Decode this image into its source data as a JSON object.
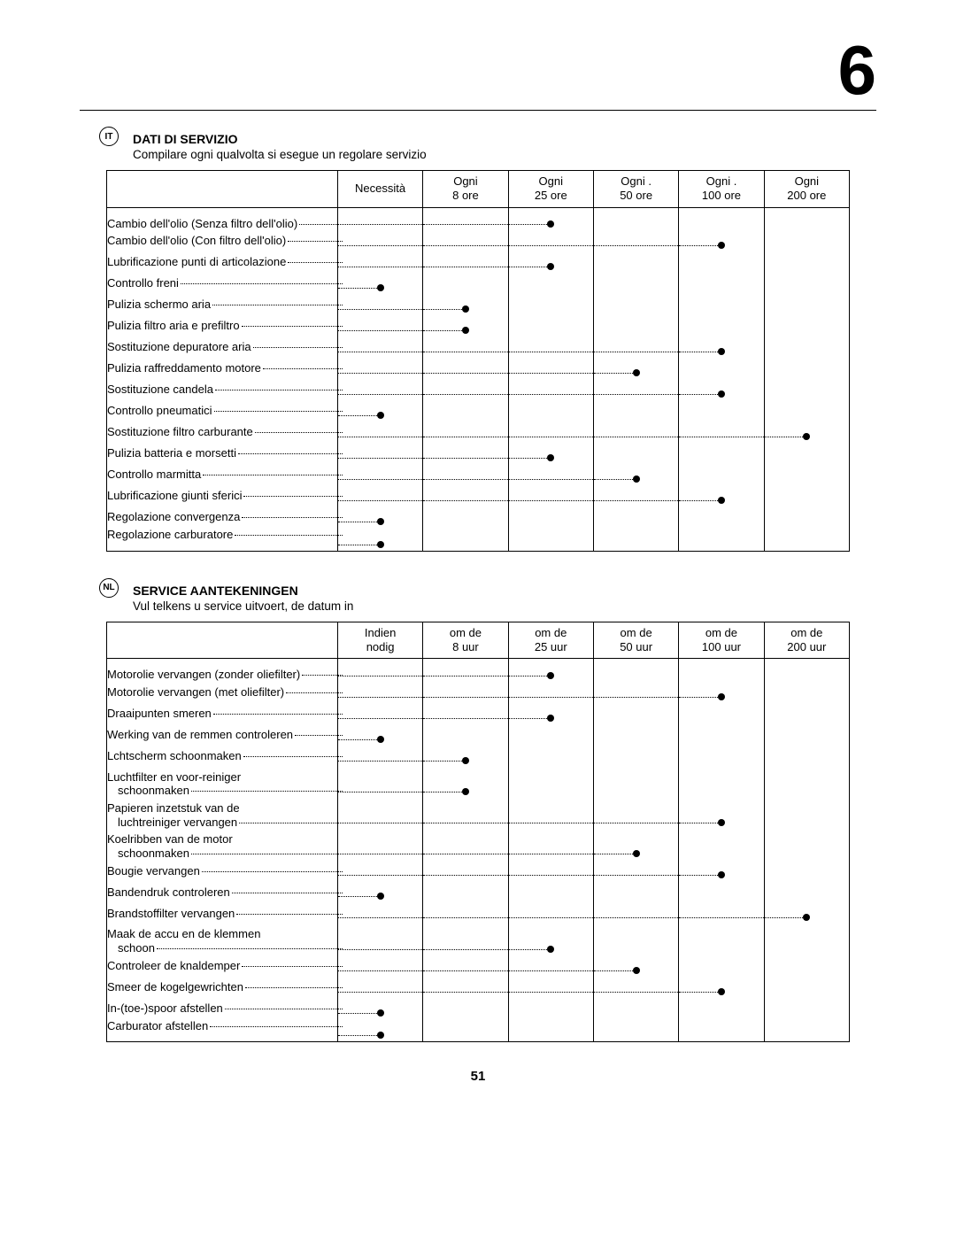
{
  "chapter_number": "6",
  "page_number": "51",
  "sections": [
    {
      "lang_code": "IT",
      "title": "DATI DI SERVIZIO",
      "subtitle": "Compilare ogni qualvolta si esegue un regolare servizio",
      "headers": [
        "Necessità",
        "Ogni\n8 ore",
        "Ogni\n25 ore",
        "Ogni .\n50 ore",
        "Ogni .\n100 ore",
        "Ogni\n200 ore"
      ],
      "rows": [
        {
          "label": "Cambio dell'olio (Senza filtro dell'olio)",
          "dot_col": 2
        },
        {
          "label": "Cambio dell'olio (Con filtro dell'olio)",
          "dot_col": 4
        },
        {
          "label": "Lubrificazione punti di articolazione",
          "dot_col": 2
        },
        {
          "label": "Controllo freni",
          "dot_col": 0
        },
        {
          "label": "Pulizia schermo aria",
          "dot_col": 1
        },
        {
          "label": "Pulizia filtro aria e prefiltro",
          "dot_col": 1
        },
        {
          "label": "Sostituzione depuratore aria",
          "dot_col": 4
        },
        {
          "label": "Pulizia raffreddamento motore",
          "dot_col": 3
        },
        {
          "label": "Sostituzione candela",
          "dot_col": 4
        },
        {
          "label": "Controllo pneumatici",
          "dot_col": 0
        },
        {
          "label": "Sostituzione filtro carburante",
          "dot_col": 5
        },
        {
          "label": "Pulizia batteria e morsetti",
          "dot_col": 2
        },
        {
          "label": "Controllo marmitta",
          "dot_col": 3
        },
        {
          "label": "Lubrificazione giunti sferici",
          "dot_col": 4
        },
        {
          "label": "Regolazione convergenza",
          "dot_col": 0
        },
        {
          "label": "Regolazione carburatore",
          "dot_col": 0
        }
      ]
    },
    {
      "lang_code": "NL",
      "title": "SERVICE AANTEKENINGEN",
      "subtitle": "Vul telkens u service uitvoert, de datum in",
      "headers": [
        "Indien\nnodig",
        "om de\n8 uur",
        "om de\n25 uur",
        "om de\n50 uur",
        "om de\n100 uur",
        "om de\n200 uur"
      ],
      "rows": [
        {
          "label": "Motorolie vervangen (zonder oliefilter)",
          "dot_col": 2
        },
        {
          "label": "Motorolie vervangen (met oliefilter)",
          "dot_col": 4
        },
        {
          "label": "Draaipunten smeren",
          "dot_col": 2
        },
        {
          "label": "Werking van de remmen controleren",
          "dot_col": 0
        },
        {
          "label": "Lchtscherm schoonmaken",
          "dot_col": 1
        },
        {
          "label_prefix": "Luchtfilter en voor-reiniger",
          "label": "schoonmaken",
          "dot_col": 1
        },
        {
          "label_prefix": "Papieren inzetstuk van de",
          "label": "luchtreiniger vervangen",
          "dot_col": 4
        },
        {
          "label_prefix": "Koelribben van de motor",
          "label": "schoonmaken",
          "dot_col": 3
        },
        {
          "label": "Bougie vervangen",
          "dot_col": 4
        },
        {
          "label": "Bandendruk controleren",
          "dot_col": 0
        },
        {
          "label": "Brandstoffilter vervangen",
          "dot_col": 5
        },
        {
          "label_prefix": "Maak de accu en de klemmen",
          "label": "schoon",
          "dot_col": 2
        },
        {
          "label": "Controleer de knaldemper",
          "dot_col": 3
        },
        {
          "label": "Smeer de kogelgewrichten",
          "dot_col": 4
        },
        {
          "label": "In-(toe-)spoor afstellen",
          "dot_col": 0
        },
        {
          "label": "Carburator afstellen",
          "dot_col": 0
        }
      ]
    }
  ]
}
